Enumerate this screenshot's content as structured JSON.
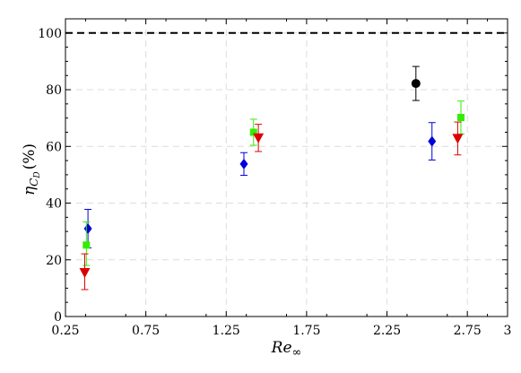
{
  "chart_data": {
    "type": "scatter",
    "title": "",
    "xlabel": {
      "main": "Re",
      "sub": "∞"
    },
    "ylabel": {
      "main": "η",
      "sub": "C",
      "subsub": "D",
      "unit": "(%)"
    },
    "xlim": [
      0.25,
      3.0
    ],
    "ylim": [
      0,
      105
    ],
    "xticks": [
      0.25,
      0.75,
      1.25,
      1.75,
      2.25,
      2.75,
      3.0
    ],
    "xtick_labels": [
      "0.25",
      "0.75",
      "1.25",
      "1.75",
      "2.25",
      "2.75",
      "3"
    ],
    "yticks": [
      0,
      20,
      40,
      60,
      80,
      100
    ],
    "ytick_labels": [
      "0",
      "20",
      "40",
      "60",
      "80",
      "100"
    ],
    "grid": true,
    "reference_line": {
      "y": 100,
      "style": "dashed",
      "color": "#000000"
    },
    "series": [
      {
        "marker": "circle",
        "color": "#000000",
        "points": [
          {
            "x": 2.43,
            "y": 82.2,
            "err_low": 6.0,
            "err_high": 6.0
          }
        ]
      },
      {
        "marker": "diamond",
        "color": "#0000dd",
        "points": [
          {
            "x": 0.39,
            "y": 31.0,
            "err_low": 6.8,
            "err_high": 6.8
          },
          {
            "x": 1.36,
            "y": 53.8,
            "err_low": 4.0,
            "err_high": 4.0
          },
          {
            "x": 2.53,
            "y": 61.8,
            "err_low": 6.6,
            "err_high": 6.6
          }
        ]
      },
      {
        "marker": "square",
        "color": "#33ee00",
        "points": [
          {
            "x": 0.38,
            "y": 25.2,
            "err_low": 7.2,
            "err_high": 8.2
          },
          {
            "x": 1.42,
            "y": 65.0,
            "err_low": 4.6,
            "err_high": 4.6
          },
          {
            "x": 2.71,
            "y": 70.2,
            "err_low": 5.8,
            "err_high": 5.8
          }
        ]
      },
      {
        "marker": "triangle-down",
        "color": "#dd0000",
        "points": [
          {
            "x": 0.37,
            "y": 15.5,
            "err_low": 6.0,
            "err_high": 6.6
          },
          {
            "x": 1.45,
            "y": 63.0,
            "err_low": 4.8,
            "err_high": 4.8
          },
          {
            "x": 2.69,
            "y": 62.8,
            "err_low": 5.8,
            "err_high": 5.8
          }
        ]
      }
    ]
  }
}
